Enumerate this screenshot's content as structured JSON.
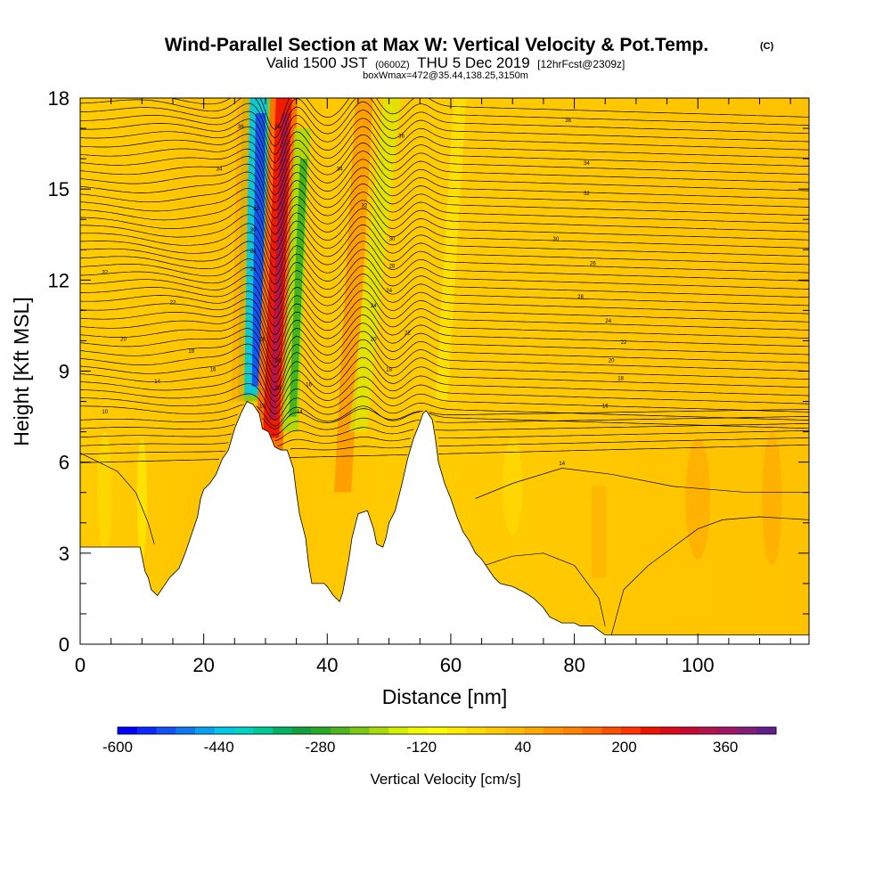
{
  "chart_data": {
    "type": "heatmap",
    "title_main": "Wind-Parallel Section at Max W: Vertical Velocity & Pot.Temp.",
    "title_mark": "(C)",
    "subtitle_a": "Valid 1500 JST",
    "subtitle_b": "(0600Z)",
    "subtitle_c": "THU 5 Dec 2019",
    "subtitle_d": "[12hrFcst@2309z]",
    "subtitle_line2": "boxWmax=472@35.44,138.25,3150m",
    "xlabel": "Distance [nm]",
    "ylabel": "Height [Kft MSL]",
    "xlim": [
      0,
      118
    ],
    "ylim": [
      0,
      18
    ],
    "x_ticks": [
      0,
      20,
      40,
      60,
      80,
      100
    ],
    "y_ticks": [
      0,
      3,
      6,
      9,
      12,
      15,
      18
    ],
    "colorbar": {
      "label": "Vertical Velocity [cm/s]",
      "min": -600,
      "max": 440,
      "step": 40,
      "tick_values": [
        -600,
        -440,
        -280,
        -120,
        40,
        200,
        360
      ],
      "tick_labels": [
        "-600",
        "-440",
        "-280",
        "-120",
        "40",
        "200",
        "360"
      ],
      "colors": [
        "#0000ff",
        "#0a28ff",
        "#1450f5",
        "#0f78f0",
        "#0aa0f0",
        "#00c8e6",
        "#00d2c8",
        "#00c896",
        "#00b464",
        "#14a03c",
        "#28aa28",
        "#50b41e",
        "#7dc814",
        "#a5dc0a",
        "#d2f000",
        "#f0fa00",
        "#ffff00",
        "#ffec00",
        "#ffdc00",
        "#ffcc00",
        "#ffbc00",
        "#ffaa00",
        "#ff9600",
        "#ff8200",
        "#ff6e00",
        "#ff5000",
        "#ff3200",
        "#f01400",
        "#dc0a14",
        "#c80a32",
        "#b4144b",
        "#a01464",
        "#821e78",
        "#641e8c"
      ]
    },
    "contour_labels": [
      {
        "text": "36",
        "x": 26,
        "y": 17.0
      },
      {
        "text": "34",
        "x": 22.5,
        "y": 15.6
      },
      {
        "text": "32",
        "x": 4,
        "y": 12.2
      },
      {
        "text": "22",
        "x": 15,
        "y": 11.2
      },
      {
        "text": "20",
        "x": 7,
        "y": 10.0
      },
      {
        "text": "18",
        "x": 18,
        "y": 9.6
      },
      {
        "text": "16",
        "x": 21.5,
        "y": 9.0
      },
      {
        "text": "14",
        "x": 12.5,
        "y": 8.6
      },
      {
        "text": "10",
        "x": 4,
        "y": 7.6
      },
      {
        "text": "36",
        "x": 32,
        "y": 17.0
      },
      {
        "text": "32",
        "x": 28.5,
        "y": 14.3
      },
      {
        "text": "30",
        "x": 28,
        "y": 13.6
      },
      {
        "text": "28",
        "x": 28,
        "y": 12.9
      },
      {
        "text": "26",
        "x": 28,
        "y": 12.3
      },
      {
        "text": "18",
        "x": 29.5,
        "y": 10.0
      },
      {
        "text": "34",
        "x": 32,
        "y": 9.3
      },
      {
        "text": "20",
        "x": 32,
        "y": 8.4
      },
      {
        "text": "16",
        "x": 29.5,
        "y": 7.8
      },
      {
        "text": "14",
        "x": 35.5,
        "y": 7.6
      },
      {
        "text": "16",
        "x": 37,
        "y": 8.5
      },
      {
        "text": "36",
        "x": 52,
        "y": 16.7
      },
      {
        "text": "34",
        "x": 42,
        "y": 15.6
      },
      {
        "text": "32",
        "x": 46,
        "y": 14.4
      },
      {
        "text": "30",
        "x": 50.5,
        "y": 13.3
      },
      {
        "text": "28",
        "x": 50.5,
        "y": 12.4
      },
      {
        "text": "24",
        "x": 50,
        "y": 11.6
      },
      {
        "text": "24",
        "x": 47.5,
        "y": 11.1
      },
      {
        "text": "20",
        "x": 47.5,
        "y": 10.0
      },
      {
        "text": "22",
        "x": 53,
        "y": 10.2
      },
      {
        "text": "18",
        "x": 50,
        "y": 9.0
      },
      {
        "text": "36",
        "x": 79,
        "y": 17.2
      },
      {
        "text": "34",
        "x": 82,
        "y": 15.8
      },
      {
        "text": "32",
        "x": 82,
        "y": 14.8
      },
      {
        "text": "30",
        "x": 77,
        "y": 13.3
      },
      {
        "text": "26",
        "x": 83,
        "y": 12.5
      },
      {
        "text": "28",
        "x": 81,
        "y": 11.4
      },
      {
        "text": "24",
        "x": 85.5,
        "y": 10.6
      },
      {
        "text": "22",
        "x": 88,
        "y": 9.9
      },
      {
        "text": "20",
        "x": 86,
        "y": 9.3
      },
      {
        "text": "18",
        "x": 87.5,
        "y": 8.7
      },
      {
        "text": "16",
        "x": 85,
        "y": 7.8
      },
      {
        "text": "14",
        "x": 78,
        "y": 5.9
      }
    ]
  }
}
